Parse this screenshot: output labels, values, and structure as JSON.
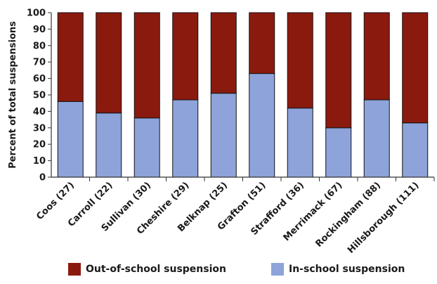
{
  "chart_data": {
    "type": "bar",
    "stacked": true,
    "ylabel": "Percent of total suspensions",
    "ylim": [
      0,
      100
    ],
    "yticks": [
      "0",
      "10",
      "20",
      "30",
      "40",
      "50",
      "60",
      "70",
      "80",
      "90",
      "100"
    ],
    "grid": false,
    "legend_position": "bottom",
    "categories": [
      "Coos (27)",
      "Carroll (22)",
      "Sullivan (30)",
      "Cheshire (29)",
      "Belknap (25)",
      "Grafton (51)",
      "Strafford (36)",
      "Merrimack (67)",
      "Rockingham (88)",
      "Hillsborough (111)"
    ],
    "series": [
      {
        "name": "In-school suspension",
        "color": "#8DA3D9",
        "values": [
          46,
          39,
          36,
          47,
          51,
          63,
          42,
          30,
          47,
          33
        ]
      },
      {
        "name": "Out-of-school suspension",
        "color": "#8B1A0E",
        "values": [
          54,
          61,
          64,
          53,
          49,
          37,
          58,
          70,
          53,
          67
        ]
      }
    ]
  }
}
